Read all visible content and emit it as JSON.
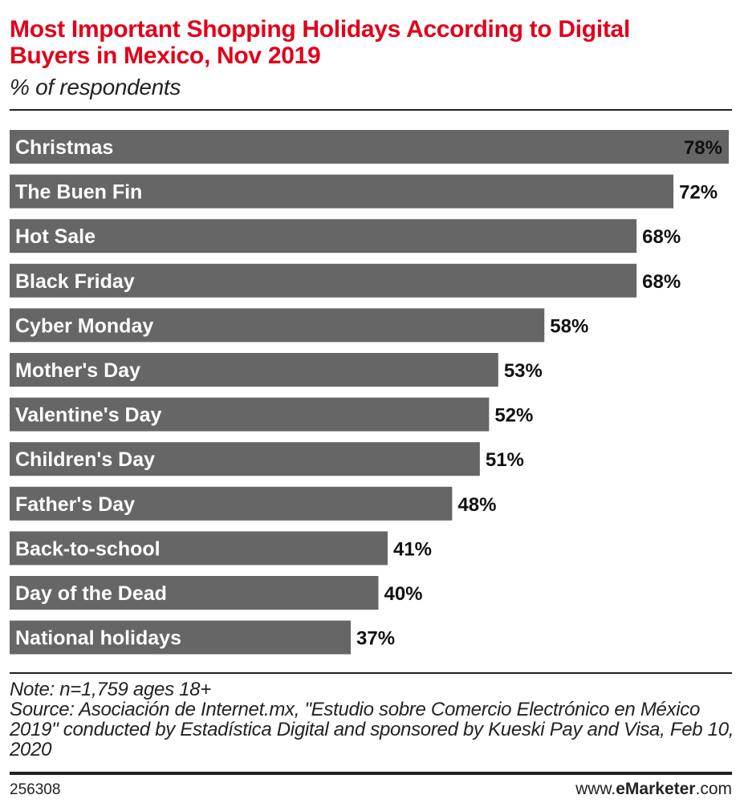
{
  "header": {
    "title": "Most Important Shopping Holidays According to Digital Buyers in Mexico, Nov 2019",
    "subtitle": "% of respondents"
  },
  "chart_data": {
    "type": "bar",
    "orientation": "horizontal",
    "title": "Most Important Shopping Holidays According to Digital Buyers in Mexico, Nov 2019",
    "subtitle": "% of respondents",
    "categories": [
      "Christmas",
      "The Buen Fin",
      "Hot Sale",
      "Black Friday",
      "Cyber Monday",
      "Mother's Day",
      "Valentine's Day",
      "Children's Day",
      "Father's Day",
      "Back-to-school",
      "Day of the Dead",
      "National holidays"
    ],
    "values": [
      78,
      72,
      68,
      68,
      58,
      53,
      52,
      51,
      48,
      41,
      40,
      37
    ],
    "value_labels": [
      "78%",
      "72%",
      "68%",
      "68%",
      "58%",
      "53%",
      "52%",
      "51%",
      "48%",
      "41%",
      "40%",
      "37%"
    ],
    "unit": "%",
    "xlim": [
      0,
      78
    ],
    "bar_color": "#666666",
    "grid": false,
    "legend": "none"
  },
  "notes": {
    "note": "Note: n=1,759 ages 18+",
    "source": "Source: Asociación de Internet.mx, \"Estudio sobre Comercio Electrónico en México 2019\" conducted by Estadística Digital and sponsored by Kueski Pay and Visa, Feb 10, 2020"
  },
  "footer": {
    "chart_id": "256308",
    "brand_prefix": "www.",
    "brand_name": "eMarketer",
    "brand_suffix": ".com"
  }
}
